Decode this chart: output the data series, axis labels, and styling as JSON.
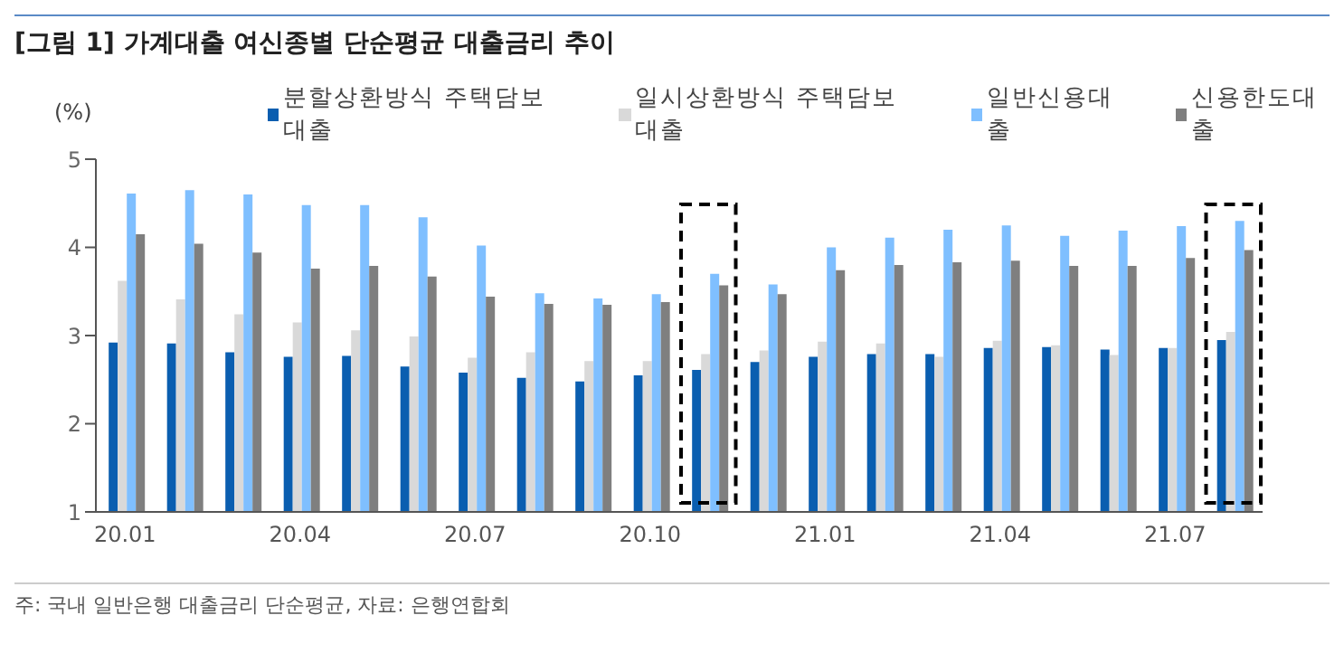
{
  "chart_data": {
    "type": "bar",
    "title": "[그림 1] 가계대출 여신종별 단순평균 대출금리 추이",
    "ylabel": "(%)",
    "categories": [
      "20.01",
      null,
      null,
      "20.04",
      null,
      null,
      "20.07",
      null,
      null,
      "20.10",
      null,
      null,
      "21.01",
      null,
      null,
      "21.04",
      null,
      null,
      "21.07",
      null
    ],
    "series": [
      {
        "name": "분할상환방식 주택담보대출",
        "color": "#0a5eb0",
        "values": [
          2.92,
          2.91,
          2.81,
          2.76,
          2.77,
          2.65,
          2.58,
          2.52,
          2.48,
          2.55,
          2.61,
          2.7,
          2.76,
          2.79,
          2.79,
          2.86,
          2.87,
          2.84,
          2.86,
          2.95
        ]
      },
      {
        "name": "일시상환방식 주택담보대출",
        "color": "#d9d9d9",
        "values": [
          3.62,
          3.41,
          3.24,
          3.15,
          3.06,
          2.99,
          2.75,
          2.81,
          2.71,
          2.71,
          2.79,
          2.83,
          2.93,
          2.91,
          2.76,
          2.94,
          2.89,
          2.78,
          2.86,
          3.04
        ]
      },
      {
        "name": "일반신용대출",
        "color": "#7fbfff",
        "values": [
          4.61,
          4.65,
          4.6,
          4.48,
          4.48,
          4.34,
          4.02,
          3.48,
          3.42,
          3.47,
          3.7,
          3.58,
          4.0,
          4.11,
          4.2,
          4.25,
          4.13,
          4.19,
          4.24,
          4.3
        ]
      },
      {
        "name": "신용한도대출",
        "color": "#7f7f7f",
        "values": [
          4.15,
          4.04,
          3.94,
          3.76,
          3.79,
          3.67,
          3.44,
          3.36,
          3.35,
          3.38,
          3.57,
          3.47,
          3.74,
          3.8,
          3.83,
          3.85,
          3.79,
          3.79,
          3.88,
          3.97
        ]
      }
    ],
    "ylim": [
      1,
      5
    ],
    "yticks": [
      1,
      2,
      3,
      4,
      5
    ],
    "grid": false,
    "legend": "top",
    "annotations": [
      "주: 국내 일반은행 대출금리 단순평균, 자료: 은행연합회"
    ]
  }
}
